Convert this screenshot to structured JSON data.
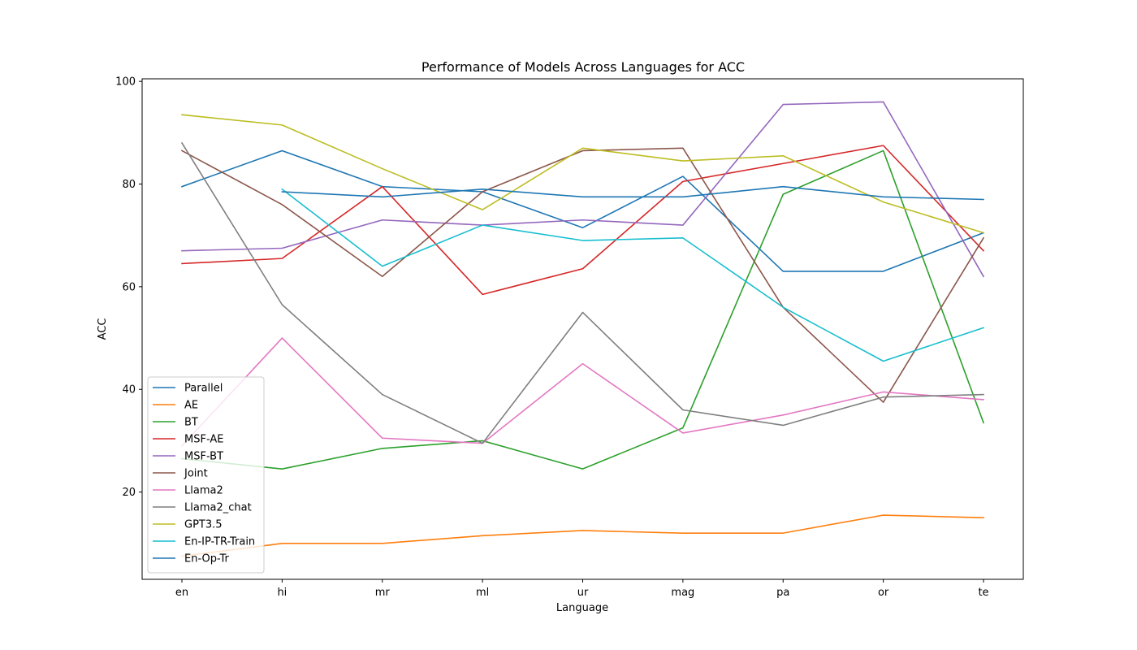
{
  "chart_data": {
    "type": "line",
    "title": "Performance of Models Across Languages for ACC",
    "xlabel": "Language",
    "ylabel": "ACC",
    "categories": [
      "en",
      "hi",
      "mr",
      "ml",
      "ur",
      "mag",
      "pa",
      "or",
      "te"
    ],
    "ylim": [
      3,
      100.5
    ],
    "yticks": [
      20,
      40,
      60,
      80,
      100
    ],
    "grid": false,
    "legend_position": "lower-left",
    "series": [
      {
        "name": "Parallel",
        "color": "#1f77b4",
        "values": [
          79.5,
          86.5,
          79.5,
          78.5,
          71.5,
          81.5,
          63,
          63,
          70.5
        ]
      },
      {
        "name": "AE",
        "color": "#ff7f0e",
        "values": [
          7.5,
          10,
          10,
          11.5,
          12.5,
          12,
          12,
          15.5,
          15
        ]
      },
      {
        "name": "BT",
        "color": "#2ca02c",
        "values": [
          26.5,
          24.5,
          28.5,
          30,
          24.5,
          32.5,
          78,
          86.5,
          33.5
        ]
      },
      {
        "name": "MSF-AE",
        "color": "#d62728",
        "values": [
          64.5,
          65.5,
          79.5,
          58.5,
          63.5,
          80.5,
          84,
          87.5,
          67
        ]
      },
      {
        "name": "MSF-BT",
        "color": "#9467bd",
        "values": [
          67,
          67.5,
          73,
          72,
          73,
          72,
          95.5,
          96,
          62
        ]
      },
      {
        "name": "Joint",
        "color": "#8c564b",
        "values": [
          86.5,
          76,
          62,
          78.5,
          86.5,
          87,
          56,
          37.5,
          69.5
        ]
      },
      {
        "name": "Llama2",
        "color": "#e377c2",
        "values": [
          29,
          50,
          30.5,
          29.5,
          45,
          31.5,
          35,
          39.5,
          38
        ]
      },
      {
        "name": "Llama2_chat",
        "color": "#7f7f7f",
        "values": [
          88,
          56.5,
          39,
          29.5,
          55,
          36,
          33,
          38.5,
          39
        ]
      },
      {
        "name": "GPT3.5",
        "color": "#bcbd22",
        "values": [
          93.5,
          91.5,
          83,
          75,
          87,
          84.5,
          85.5,
          76.5,
          70.5
        ]
      },
      {
        "name": "En-IP-TR-Train",
        "color": "#17becf",
        "values": [
          null,
          79,
          64,
          72,
          69,
          69.5,
          56,
          45.5,
          52
        ]
      },
      {
        "name": "En-Op-Tr",
        "color": "#1f77b4",
        "values": [
          null,
          78.5,
          77.5,
          79,
          77.5,
          77.5,
          79.5,
          77.5,
          77
        ]
      }
    ]
  }
}
